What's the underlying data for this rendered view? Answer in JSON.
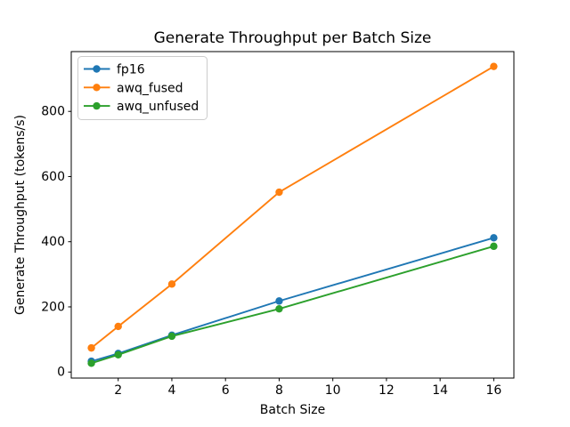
{
  "figure": {
    "background": "#ffffff"
  },
  "chart_data": {
    "type": "line",
    "title": "Generate Throughput per Batch Size",
    "xlabel": "Batch Size",
    "ylabel": "Generate Throughput (tokens/s)",
    "x": [
      1,
      2,
      4,
      8,
      16
    ],
    "series": [
      {
        "name": "fp16",
        "color": "#1f77b4",
        "values": [
          33,
          57,
          113,
          218,
          412
        ]
      },
      {
        "name": "awq_fused",
        "color": "#ff7f0e",
        "values": [
          74,
          140,
          270,
          552,
          938
        ]
      },
      {
        "name": "awq_unfused",
        "color": "#2ca02c",
        "values": [
          27,
          53,
          110,
          194,
          386
        ]
      }
    ],
    "x_ticks": [
      2,
      4,
      6,
      8,
      10,
      12,
      14,
      16
    ],
    "y_ticks": [
      0,
      200,
      400,
      600,
      800
    ],
    "xlim": [
      0.25,
      16.75
    ],
    "ylim": [
      -18.5,
      983.5
    ],
    "grid": false,
    "legend_position": "upper left",
    "marker": "circle",
    "axis_color": "#000000",
    "legend_border_color": "#cccccc",
    "legend_background": "#ffffff"
  }
}
